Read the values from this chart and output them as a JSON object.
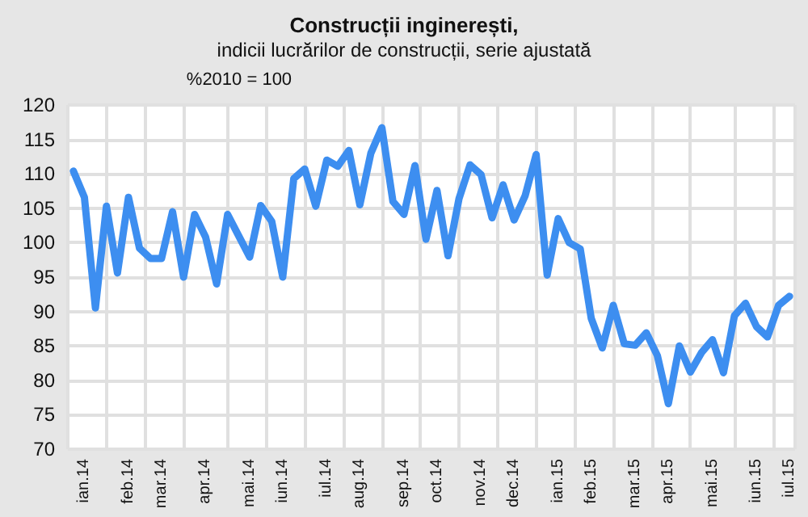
{
  "chart_data": {
    "type": "line",
    "title": "Construcții inginerești,",
    "subtitle": "indicii lucrărilor de construcții, serie ajustată",
    "ylabel": "%2010 = 100",
    "categories": [
      null,
      "ian.14",
      null,
      null,
      null,
      "feb.14",
      null,
      null,
      "mar.14",
      null,
      null,
      null,
      "apr.14",
      null,
      null,
      null,
      "mai.14",
      null,
      null,
      "iun.14",
      null,
      null,
      null,
      "iul.14",
      null,
      null,
      "aug.14",
      null,
      null,
      null,
      "sep.14",
      null,
      null,
      "oct.14",
      null,
      null,
      null,
      "nov.14",
      null,
      null,
      "dec.14",
      null,
      null,
      null,
      "ian.15",
      null,
      null,
      "feb.15",
      null,
      null,
      null,
      "mar.15",
      null,
      null,
      "apr.15",
      null,
      null,
      null,
      "mai.15",
      null,
      null,
      null,
      "iun.15",
      null,
      null,
      "iul.15"
    ],
    "series": [
      {
        "color": "#3d8ef0",
        "values": [
          110.4,
          106.6,
          90.5,
          105.3,
          95.6,
          106.6,
          99.2,
          97.7,
          97.7,
          104.5,
          95,
          104.1,
          100.8,
          94,
          104.1,
          101,
          97.9,
          105.4,
          103.1,
          95,
          109.3,
          110.7,
          105.3,
          112,
          111.1,
          113.4,
          105.5,
          113,
          116.7,
          106,
          104.1,
          111.2,
          100.5,
          107.6,
          98.1,
          106.4,
          111.3,
          109.9,
          103.6,
          108.4,
          103.3,
          106.8,
          112.8,
          95.3,
          103.5,
          100,
          99.1,
          89,
          84.7,
          90.9,
          85.3,
          85.1,
          86.9,
          83.6,
          76.6,
          85,
          81.2,
          84,
          85.9,
          81.1,
          89.4,
          91.2,
          87.8,
          86.3,
          90.9,
          92.2
        ]
      }
    ],
    "ylim": [
      70,
      120
    ],
    "yticks": [
      70,
      75,
      80,
      85,
      90,
      95,
      100,
      105,
      110,
      115,
      120
    ],
    "grid": true,
    "marker": "none",
    "line_style": "solid"
  }
}
